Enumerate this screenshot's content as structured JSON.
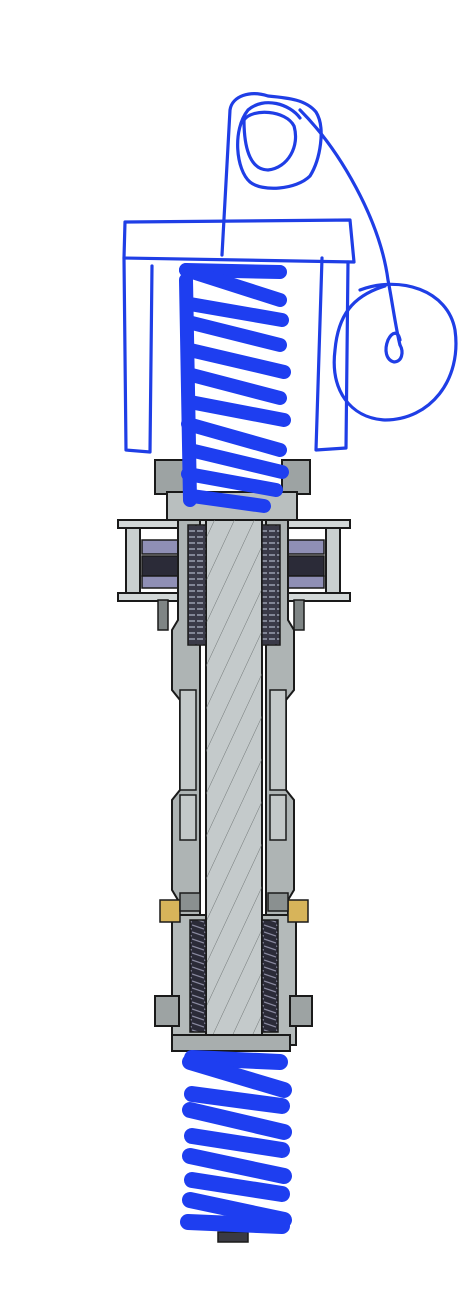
{
  "colors": {
    "background": "#ffffff",
    "ink_blue": "#1f3ee6",
    "spring_blue": "#1e3ef0",
    "steel_face": "#c9cfcf",
    "steel_dark": "#8c9191",
    "steel_mid": "#aeb4b4",
    "outline": "#1a1a1a",
    "coil_dark": "#2a2a35",
    "insert_gold": "#d7b45a"
  },
  "icons": {
    "cross_section": "shaft-cross-section-icon",
    "sketch": "hand-drawn-sketch-icon"
  }
}
